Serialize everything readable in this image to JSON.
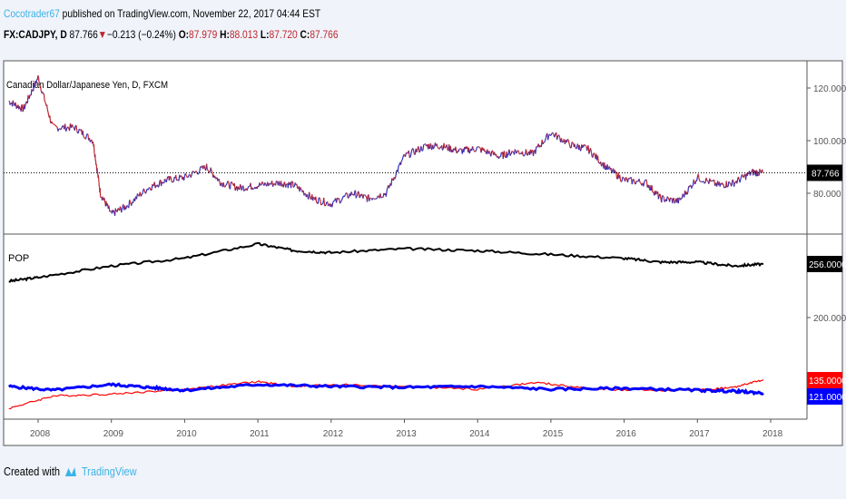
{
  "header": {
    "author": "Cocotrader67",
    "published": "published on TradingView.com, November 22, 2017 04:44 EST",
    "symbol": "FX:CADJPY, D",
    "last": "87.766",
    "change": "−0.213 (−0.24%)",
    "o_label": "O:",
    "o": "87.979",
    "h_label": "H:",
    "h": "88.013",
    "l_label": "L:",
    "l": "87.720",
    "c_label": "C:",
    "c": "87.766"
  },
  "footer": {
    "created_with": "Created with",
    "brand": "TradingView"
  },
  "colors": {
    "price_up": "#3030c0",
    "price_down": "#c0262d",
    "pop": "#000000",
    "red": "#ff0000",
    "blue": "#0000ff",
    "accent": "#3bb3e4"
  },
  "chart_data": [
    {
      "type": "line",
      "title": "Canadian Dollar/Japanese Yen, D, FXCM",
      "ylim": [
        65,
        130
      ],
      "yticks": [
        "120.000",
        "100.000",
        "80.000"
      ],
      "last_label": "87.766",
      "x": [
        2007.6,
        2007.8,
        2008.0,
        2008.2,
        2008.5,
        2008.75,
        2008.85,
        2009.0,
        2009.2,
        2009.5,
        2009.75,
        2010.0,
        2010.3,
        2010.5,
        2010.75,
        2011.0,
        2011.3,
        2011.5,
        2011.75,
        2012.0,
        2012.3,
        2012.5,
        2012.75,
        2013.0,
        2013.3,
        2013.5,
        2013.75,
        2014.0,
        2014.3,
        2014.5,
        2014.75,
        2015.0,
        2015.3,
        2015.5,
        2015.75,
        2016.0,
        2016.3,
        2016.5,
        2016.75,
        2017.0,
        2017.3,
        2017.5,
        2017.75,
        2017.89
      ],
      "values": [
        115,
        112,
        124,
        105,
        105,
        100,
        80,
        72,
        75,
        82,
        85,
        86,
        90,
        84,
        82,
        83,
        84,
        83,
        78,
        76,
        80,
        78,
        80,
        94,
        98,
        98,
        96,
        97,
        94,
        96,
        95,
        103,
        98,
        97,
        90,
        85,
        84,
        78,
        77,
        86,
        83,
        84,
        88,
        87.766
      ]
    },
    {
      "type": "line",
      "title": "POP",
      "ylim": [
        100,
        290
      ],
      "yticks": [
        "256.0000",
        "200.0000"
      ],
      "series": [
        {
          "label": "256.0000",
          "x": [
            2007.6,
            2008,
            2009,
            2010,
            2011,
            2011.5,
            2012,
            2013,
            2014,
            2015,
            2016,
            2016.5,
            2017,
            2017.5,
            2017.9
          ],
          "values": [
            238,
            242,
            254,
            262,
            277,
            270,
            268,
            272,
            270,
            266,
            262,
            258,
            258,
            254,
            256
          ]
        },
        {
          "label": "135.0000",
          "x": [
            2007.6,
            2008.2,
            2009,
            2010,
            2011,
            2011.5,
            2012,
            2013,
            2014,
            2014.8,
            2015.5,
            2016,
            2017,
            2017.5,
            2017.9
          ],
          "values": [
            105,
            118,
            120,
            125,
            133,
            128,
            130,
            128,
            125,
            132,
            126,
            124,
            124,
            127,
            135
          ]
        },
        {
          "label": "121.0000",
          "x": [
            2007.6,
            2008.2,
            2009,
            2009.5,
            2010,
            2011,
            2012,
            2013,
            2014,
            2015,
            2016,
            2017,
            2017.5,
            2017.9
          ],
          "values": [
            128,
            124,
            130,
            127,
            124,
            130,
            128,
            127,
            128,
            125,
            126,
            124,
            123,
            121
          ]
        }
      ]
    },
    {
      "xticks": [
        "2008",
        "2009",
        "2010",
        "2011",
        "2012",
        "2013",
        "2014",
        "2015",
        "2016",
        "2017",
        "2018"
      ]
    }
  ]
}
